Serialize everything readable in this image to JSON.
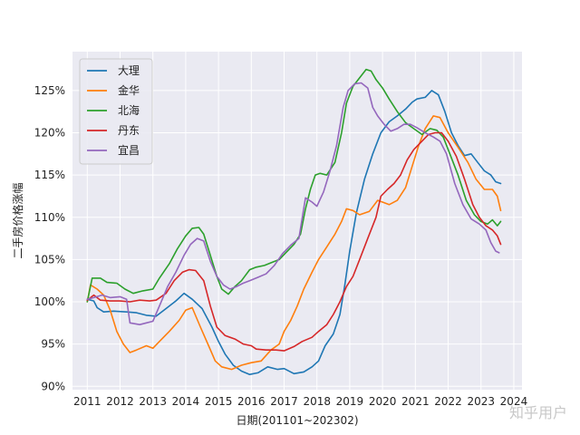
{
  "chart_data": {
    "type": "line",
    "title": "",
    "xlabel": "日期(201101~202302)",
    "ylabel": "二手房价格涨幅",
    "xlim": [
      2010.55,
      2024.25
    ],
    "ylim": [
      89.6,
      129.6
    ],
    "x_ticks": [
      2011,
      2012,
      2013,
      2014,
      2015,
      2016,
      2017,
      2018,
      2019,
      2020,
      2021,
      2022,
      2023,
      2024
    ],
    "x_tick_labels": [
      "2011",
      "2012",
      "2013",
      "2014",
      "2015",
      "2016",
      "2017",
      "2018",
      "2019",
      "2020",
      "2021",
      "2022",
      "2023",
      "2024"
    ],
    "y_ticks": [
      90,
      95,
      100,
      105,
      110,
      115,
      120,
      125
    ],
    "y_tick_labels": [
      "90%",
      "95%",
      "100%",
      "105%",
      "110%",
      "115%",
      "120%",
      "125%"
    ],
    "grid": true,
    "legend_position": "upper-left",
    "series": [
      {
        "name": "大理",
        "color": "#1f77b4",
        "points": [
          [
            2011.0,
            100.3
          ],
          [
            2011.2,
            100.1
          ],
          [
            2011.3,
            99.3
          ],
          [
            2011.5,
            98.8
          ],
          [
            2011.8,
            98.9
          ],
          [
            2012.2,
            98.8
          ],
          [
            2012.5,
            98.7
          ],
          [
            2012.8,
            98.4
          ],
          [
            2013.1,
            98.3
          ],
          [
            2013.4,
            99.2
          ],
          [
            2013.7,
            100.1
          ],
          [
            2013.95,
            101.0
          ],
          [
            2014.2,
            100.3
          ],
          [
            2014.5,
            99.2
          ],
          [
            2014.8,
            97.0
          ],
          [
            2015.0,
            95.3
          ],
          [
            2015.2,
            93.8
          ],
          [
            2015.45,
            92.5
          ],
          [
            2015.7,
            91.8
          ],
          [
            2015.95,
            91.4
          ],
          [
            2016.2,
            91.6
          ],
          [
            2016.5,
            92.3
          ],
          [
            2016.8,
            92.0
          ],
          [
            2017.0,
            92.1
          ],
          [
            2017.3,
            91.5
          ],
          [
            2017.6,
            91.7
          ],
          [
            2017.85,
            92.3
          ],
          [
            2018.05,
            93.0
          ],
          [
            2018.25,
            94.8
          ],
          [
            2018.5,
            96.2
          ],
          [
            2018.7,
            98.5
          ],
          [
            2018.85,
            102.0
          ],
          [
            2019.0,
            106.0
          ],
          [
            2019.2,
            110.5
          ],
          [
            2019.45,
            114.5
          ],
          [
            2019.7,
            117.5
          ],
          [
            2019.95,
            120.0
          ],
          [
            2020.2,
            121.3
          ],
          [
            2020.45,
            122.0
          ],
          [
            2020.7,
            122.8
          ],
          [
            2020.9,
            123.6
          ],
          [
            2021.05,
            124.0
          ],
          [
            2021.3,
            124.2
          ],
          [
            2021.5,
            125.0
          ],
          [
            2021.7,
            124.5
          ],
          [
            2021.9,
            122.5
          ],
          [
            2022.1,
            120.0
          ],
          [
            2022.3,
            118.5
          ],
          [
            2022.5,
            117.3
          ],
          [
            2022.7,
            117.5
          ],
          [
            2022.9,
            116.5
          ],
          [
            2023.1,
            115.5
          ],
          [
            2023.3,
            115.0
          ],
          [
            2023.45,
            114.2
          ],
          [
            2023.6,
            114.0
          ]
        ]
      },
      {
        "name": "金华",
        "color": "#ff7f0e",
        "points": [
          [
            2011.0,
            100.0
          ],
          [
            2011.1,
            102.0
          ],
          [
            2011.3,
            101.5
          ],
          [
            2011.5,
            100.8
          ],
          [
            2011.7,
            99.0
          ],
          [
            2011.9,
            96.5
          ],
          [
            2012.1,
            95.0
          ],
          [
            2012.3,
            94.0
          ],
          [
            2012.5,
            94.3
          ],
          [
            2012.8,
            94.8
          ],
          [
            2013.0,
            94.5
          ],
          [
            2013.2,
            95.3
          ],
          [
            2013.5,
            96.5
          ],
          [
            2013.8,
            97.8
          ],
          [
            2014.0,
            99.0
          ],
          [
            2014.2,
            99.3
          ],
          [
            2014.45,
            97.0
          ],
          [
            2014.7,
            94.8
          ],
          [
            2014.9,
            93.0
          ],
          [
            2015.1,
            92.3
          ],
          [
            2015.4,
            92.0
          ],
          [
            2015.7,
            92.5
          ],
          [
            2016.0,
            92.8
          ],
          [
            2016.3,
            93.0
          ],
          [
            2016.6,
            94.3
          ],
          [
            2016.85,
            95.0
          ],
          [
            2017.0,
            96.5
          ],
          [
            2017.2,
            97.8
          ],
          [
            2017.4,
            99.5
          ],
          [
            2017.6,
            101.5
          ],
          [
            2017.85,
            103.5
          ],
          [
            2018.05,
            105.0
          ],
          [
            2018.3,
            106.5
          ],
          [
            2018.55,
            108.0
          ],
          [
            2018.75,
            109.5
          ],
          [
            2018.9,
            111.0
          ],
          [
            2019.1,
            110.8
          ],
          [
            2019.3,
            110.3
          ],
          [
            2019.6,
            110.7
          ],
          [
            2019.85,
            112.0
          ],
          [
            2020.0,
            111.8
          ],
          [
            2020.2,
            111.5
          ],
          [
            2020.45,
            112.0
          ],
          [
            2020.7,
            113.5
          ],
          [
            2020.9,
            116.0
          ],
          [
            2021.1,
            118.5
          ],
          [
            2021.3,
            120.5
          ],
          [
            2021.55,
            122.0
          ],
          [
            2021.75,
            121.8
          ],
          [
            2022.0,
            120.0
          ],
          [
            2022.3,
            118.3
          ],
          [
            2022.6,
            116.5
          ],
          [
            2022.85,
            114.5
          ],
          [
            2023.1,
            113.3
          ],
          [
            2023.35,
            113.3
          ],
          [
            2023.5,
            112.5
          ],
          [
            2023.6,
            110.8
          ]
        ]
      },
      {
        "name": "北海",
        "color": "#2ca02c",
        "points": [
          [
            2011.0,
            100.0
          ],
          [
            2011.15,
            102.8
          ],
          [
            2011.4,
            102.8
          ],
          [
            2011.6,
            102.3
          ],
          [
            2011.9,
            102.2
          ],
          [
            2012.15,
            101.5
          ],
          [
            2012.4,
            101.0
          ],
          [
            2012.7,
            101.3
          ],
          [
            2013.0,
            101.5
          ],
          [
            2013.2,
            102.8
          ],
          [
            2013.5,
            104.5
          ],
          [
            2013.75,
            106.3
          ],
          [
            2014.0,
            107.8
          ],
          [
            2014.2,
            108.7
          ],
          [
            2014.4,
            108.8
          ],
          [
            2014.55,
            108.0
          ],
          [
            2014.75,
            105.5
          ],
          [
            2014.95,
            103.0
          ],
          [
            2015.1,
            101.5
          ],
          [
            2015.3,
            100.9
          ],
          [
            2015.5,
            101.8
          ],
          [
            2015.7,
            102.5
          ],
          [
            2015.95,
            103.8
          ],
          [
            2016.15,
            104.1
          ],
          [
            2016.4,
            104.3
          ],
          [
            2016.65,
            104.7
          ],
          [
            2016.85,
            105.0
          ],
          [
            2017.05,
            105.8
          ],
          [
            2017.3,
            106.8
          ],
          [
            2017.5,
            108.0
          ],
          [
            2017.65,
            111.0
          ],
          [
            2017.8,
            113.3
          ],
          [
            2017.95,
            115.0
          ],
          [
            2018.1,
            115.2
          ],
          [
            2018.3,
            115.0
          ],
          [
            2018.55,
            116.5
          ],
          [
            2018.75,
            120.0
          ],
          [
            2018.9,
            123.5
          ],
          [
            2019.1,
            125.5
          ],
          [
            2019.3,
            126.5
          ],
          [
            2019.5,
            127.5
          ],
          [
            2019.65,
            127.3
          ],
          [
            2019.8,
            126.3
          ],
          [
            2020.0,
            125.3
          ],
          [
            2020.2,
            124.0
          ],
          [
            2020.45,
            122.5
          ],
          [
            2020.7,
            121.2
          ],
          [
            2020.95,
            120.5
          ],
          [
            2021.2,
            119.8
          ],
          [
            2021.45,
            120.5
          ],
          [
            2021.65,
            120.3
          ],
          [
            2021.85,
            119.5
          ],
          [
            2022.05,
            117.5
          ],
          [
            2022.3,
            115.0
          ],
          [
            2022.55,
            112.0
          ],
          [
            2022.8,
            110.3
          ],
          [
            2023.0,
            109.5
          ],
          [
            2023.2,
            109.2
          ],
          [
            2023.35,
            109.7
          ],
          [
            2023.5,
            109.0
          ],
          [
            2023.6,
            109.5
          ]
        ]
      },
      {
        "name": "丹东",
        "color": "#d62728",
        "points": [
          [
            2011.0,
            100.2
          ],
          [
            2011.2,
            100.8
          ],
          [
            2011.4,
            100.2
          ],
          [
            2011.7,
            100.1
          ],
          [
            2012.0,
            100.1
          ],
          [
            2012.3,
            100.0
          ],
          [
            2012.6,
            100.2
          ],
          [
            2012.9,
            100.1
          ],
          [
            2013.1,
            100.2
          ],
          [
            2013.4,
            101.0
          ],
          [
            2013.65,
            102.5
          ],
          [
            2013.9,
            103.5
          ],
          [
            2014.1,
            103.8
          ],
          [
            2014.3,
            103.7
          ],
          [
            2014.55,
            102.5
          ],
          [
            2014.75,
            99.5
          ],
          [
            2014.95,
            97.0
          ],
          [
            2015.2,
            96.0
          ],
          [
            2015.5,
            95.6
          ],
          [
            2015.75,
            95.0
          ],
          [
            2016.0,
            94.8
          ],
          [
            2016.15,
            94.4
          ],
          [
            2016.45,
            94.3
          ],
          [
            2016.75,
            94.3
          ],
          [
            2017.0,
            94.2
          ],
          [
            2017.3,
            94.7
          ],
          [
            2017.55,
            95.3
          ],
          [
            2017.85,
            95.8
          ],
          [
            2018.05,
            96.5
          ],
          [
            2018.3,
            97.3
          ],
          [
            2018.5,
            98.5
          ],
          [
            2018.7,
            100.0
          ],
          [
            2018.9,
            101.8
          ],
          [
            2019.1,
            103.0
          ],
          [
            2019.3,
            105.0
          ],
          [
            2019.55,
            107.5
          ],
          [
            2019.8,
            110.0
          ],
          [
            2019.95,
            112.5
          ],
          [
            2020.15,
            113.3
          ],
          [
            2020.35,
            114.0
          ],
          [
            2020.55,
            115.0
          ],
          [
            2020.75,
            116.8
          ],
          [
            2020.95,
            118.0
          ],
          [
            2021.2,
            119.0
          ],
          [
            2021.4,
            119.8
          ],
          [
            2021.6,
            120.0
          ],
          [
            2021.8,
            120.0
          ],
          [
            2022.0,
            119.0
          ],
          [
            2022.25,
            117.2
          ],
          [
            2022.5,
            114.5
          ],
          [
            2022.75,
            111.5
          ],
          [
            2022.95,
            110.0
          ],
          [
            2023.15,
            109.0
          ],
          [
            2023.35,
            108.5
          ],
          [
            2023.5,
            107.8
          ],
          [
            2023.6,
            106.8
          ]
        ]
      },
      {
        "name": "宜昌",
        "color": "#9467bd",
        "points": [
          [
            2011.0,
            100.3
          ],
          [
            2011.2,
            100.5
          ],
          [
            2011.45,
            100.8
          ],
          [
            2011.7,
            100.5
          ],
          [
            2012.0,
            100.6
          ],
          [
            2012.2,
            100.3
          ],
          [
            2012.3,
            97.5
          ],
          [
            2012.6,
            97.3
          ],
          [
            2012.8,
            97.5
          ],
          [
            2013.0,
            97.7
          ],
          [
            2013.2,
            99.5
          ],
          [
            2013.45,
            101.8
          ],
          [
            2013.7,
            103.5
          ],
          [
            2013.95,
            105.5
          ],
          [
            2014.15,
            106.8
          ],
          [
            2014.35,
            107.5
          ],
          [
            2014.55,
            107.2
          ],
          [
            2014.75,
            104.8
          ],
          [
            2014.95,
            103.0
          ],
          [
            2015.15,
            102.0
          ],
          [
            2015.35,
            101.5
          ],
          [
            2015.55,
            101.8
          ],
          [
            2015.75,
            102.2
          ],
          [
            2015.95,
            102.5
          ],
          [
            2016.2,
            102.9
          ],
          [
            2016.45,
            103.3
          ],
          [
            2016.7,
            104.3
          ],
          [
            2016.95,
            105.7
          ],
          [
            2017.2,
            106.7
          ],
          [
            2017.45,
            107.5
          ],
          [
            2017.65,
            112.3
          ],
          [
            2017.85,
            111.8
          ],
          [
            2018.0,
            111.3
          ],
          [
            2018.2,
            113.0
          ],
          [
            2018.4,
            115.5
          ],
          [
            2018.6,
            118.5
          ],
          [
            2018.8,
            123.0
          ],
          [
            2018.95,
            125.0
          ],
          [
            2019.15,
            125.8
          ],
          [
            2019.35,
            125.9
          ],
          [
            2019.55,
            125.3
          ],
          [
            2019.7,
            123.0
          ],
          [
            2019.85,
            122.0
          ],
          [
            2020.05,
            121.0
          ],
          [
            2020.25,
            120.2
          ],
          [
            2020.45,
            120.5
          ],
          [
            2020.65,
            121.0
          ],
          [
            2020.85,
            121.0
          ],
          [
            2021.05,
            120.6
          ],
          [
            2021.3,
            120.0
          ],
          [
            2021.55,
            119.5
          ],
          [
            2021.75,
            119.0
          ],
          [
            2021.95,
            117.5
          ],
          [
            2022.2,
            114.0
          ],
          [
            2022.45,
            111.5
          ],
          [
            2022.7,
            109.8
          ],
          [
            2022.95,
            109.2
          ],
          [
            2023.15,
            108.5
          ],
          [
            2023.3,
            107.0
          ],
          [
            2023.45,
            106.0
          ],
          [
            2023.55,
            105.8
          ]
        ]
      }
    ]
  },
  "watermark_text": "知乎用户"
}
